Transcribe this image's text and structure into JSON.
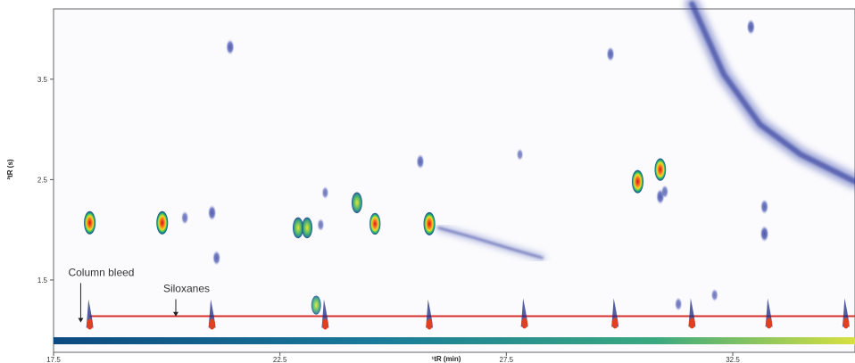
{
  "chart_data": {
    "type": "heatmap",
    "title": "",
    "xlabel": "¹tR (min)",
    "ylabel": "²tR (s)",
    "xlim": [
      17.5,
      35.2
    ],
    "ylim": [
      0.78,
      4.2
    ],
    "x_ticks": [
      {
        "value": 17.5,
        "label": "17.5"
      },
      {
        "value": 22.5,
        "label": "22.5"
      },
      {
        "value": 27.5,
        "label": "27.5"
      },
      {
        "value": 32.5,
        "label": "32.5"
      }
    ],
    "y_ticks": [
      {
        "value": 1.5,
        "label": "1.5"
      },
      {
        "value": 2.5,
        "label": "2.5"
      },
      {
        "value": 3.5,
        "label": "3.5"
      }
    ],
    "colorscale": [
      "#ffffff",
      "#d8dcf0",
      "#3a4ab0",
      "#0c1a80",
      "#18b070",
      "#e8e020",
      "#ff6020",
      "#d01010"
    ],
    "column_bleed_band": {
      "x": [
        17.5,
        35.2
      ],
      "y_bottom": 0.86,
      "y_top": 0.93
    },
    "siloxanes_line": {
      "y": 1.14,
      "x": [
        18.3,
        35.2
      ],
      "color": "#d83030"
    },
    "siloxane_peaks": [
      {
        "x": 18.3,
        "y": 1.06
      },
      {
        "x": 21.0,
        "y": 1.06
      },
      {
        "x": 23.5,
        "y": 1.06
      },
      {
        "x": 25.8,
        "y": 1.06
      },
      {
        "x": 27.9,
        "y": 1.07
      },
      {
        "x": 29.9,
        "y": 1.07
      },
      {
        "x": 31.6,
        "y": 1.07
      },
      {
        "x": 33.3,
        "y": 1.07
      },
      {
        "x": 35.0,
        "y": 1.07
      }
    ],
    "peaks": [
      {
        "x": 18.3,
        "y": 2.07,
        "intensity": 1.0
      },
      {
        "x": 19.9,
        "y": 2.07,
        "intensity": 1.0
      },
      {
        "x": 20.4,
        "y": 2.12,
        "intensity": 0.3
      },
      {
        "x": 21.0,
        "y": 2.17,
        "intensity": 0.45
      },
      {
        "x": 21.1,
        "y": 1.72,
        "intensity": 0.4
      },
      {
        "x": 21.4,
        "y": 3.82,
        "intensity": 0.45
      },
      {
        "x": 22.9,
        "y": 2.02,
        "intensity": 0.85
      },
      {
        "x": 23.1,
        "y": 2.02,
        "intensity": 0.85
      },
      {
        "x": 23.4,
        "y": 2.05,
        "intensity": 0.25
      },
      {
        "x": 23.3,
        "y": 1.25,
        "intensity": 0.7
      },
      {
        "x": 23.5,
        "y": 2.37,
        "intensity": 0.25
      },
      {
        "x": 24.2,
        "y": 2.27,
        "intensity": 0.85
      },
      {
        "x": 24.6,
        "y": 2.06,
        "intensity": 0.9
      },
      {
        "x": 25.6,
        "y": 2.68,
        "intensity": 0.4
      },
      {
        "x": 25.8,
        "y": 2.06,
        "intensity": 1.0
      },
      {
        "x": 27.8,
        "y": 2.75,
        "intensity": 0.2
      },
      {
        "x": 29.8,
        "y": 3.75,
        "intensity": 0.4
      },
      {
        "x": 30.4,
        "y": 2.48,
        "intensity": 1.0
      },
      {
        "x": 30.9,
        "y": 2.6,
        "intensity": 0.95
      },
      {
        "x": 30.9,
        "y": 2.33,
        "intensity": 0.45
      },
      {
        "x": 31.0,
        "y": 2.38,
        "intensity": 0.3
      },
      {
        "x": 31.3,
        "y": 1.26,
        "intensity": 0.3
      },
      {
        "x": 32.1,
        "y": 1.35,
        "intensity": 0.25
      },
      {
        "x": 32.9,
        "y": 4.02,
        "intensity": 0.45
      },
      {
        "x": 33.2,
        "y": 2.23,
        "intensity": 0.4
      },
      {
        "x": 33.2,
        "y": 1.96,
        "intensity": 0.5
      }
    ],
    "streaks": [
      {
        "path": [
          [
            26.0,
            2.02
          ],
          [
            26.8,
            1.92
          ],
          [
            27.6,
            1.81
          ],
          [
            28.3,
            1.72
          ]
        ],
        "intensity": 0.7
      },
      {
        "path": [
          [
            31.6,
            4.25
          ],
          [
            32.3,
            3.55
          ],
          [
            33.1,
            3.05
          ],
          [
            34.0,
            2.75
          ],
          [
            35.2,
            2.48
          ]
        ],
        "intensity": 0.55
      }
    ],
    "annotations": [
      {
        "text": "Column bleed",
        "x": 18.1,
        "y": 1.54,
        "arrow_to": [
          18.1,
          1.06
        ]
      },
      {
        "text": "Siloxanes",
        "x": 20.2,
        "y": 1.38,
        "arrow_to": [
          20.2,
          1.12
        ]
      }
    ]
  }
}
